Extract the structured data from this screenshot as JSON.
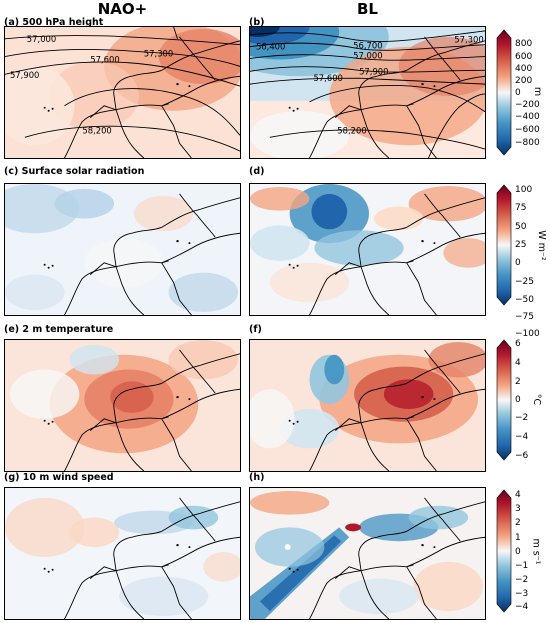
{
  "columns": [
    "NAO+",
    "BL"
  ],
  "panels": [
    {
      "label": "(a) 500 hPa height"
    },
    {
      "label": "(b)"
    },
    {
      "label": "(c) Surface solar radiation"
    },
    {
      "label": "(d)"
    },
    {
      "label": "(e) 2 m temperature"
    },
    {
      "label": "(f)"
    },
    {
      "label": "(g) 10 m wind speed"
    },
    {
      "label": "(h)"
    }
  ],
  "contour_labels": {
    "nao": [
      "57,000",
      "57,300",
      "57,600",
      "57,900",
      "58,200"
    ],
    "bl": [
      "56,400",
      "56,700",
      "57,000",
      "57,300",
      "57,600",
      "57,900",
      "58,200"
    ]
  },
  "colorbars": [
    {
      "unit": "m",
      "ticks": [
        "800",
        "600",
        "400",
        "200",
        "0",
        "−200",
        "−400",
        "−600",
        "−800"
      ]
    },
    {
      "unit": "W m⁻²",
      "ticks": [
        "100",
        "75",
        "50",
        "25",
        "0",
        "−25",
        "−50",
        "−75",
        "−100"
      ]
    },
    {
      "unit": "°C",
      "ticks": [
        "6",
        "4",
        "2",
        "0",
        "−2",
        "−4",
        "−6"
      ]
    },
    {
      "unit": "m s⁻¹",
      "ticks": [
        "4",
        "3",
        "2",
        "1",
        "0",
        "−1",
        "−2",
        "−3",
        "−4"
      ]
    }
  ],
  "colors": {
    "negative_strong": "#053061",
    "negative": "#2166ac",
    "negative_light": "#92c5de",
    "neutral": "#f7f7f7",
    "positive_light": "#f4a582",
    "positive": "#d6604d",
    "positive_strong": "#67001f"
  }
}
